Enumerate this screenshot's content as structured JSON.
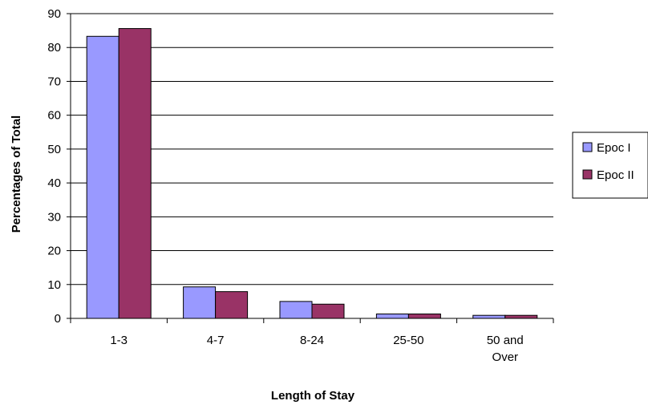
{
  "chart_data": {
    "type": "bar",
    "title": "",
    "xlabel": "Length of Stay",
    "ylabel": "Percentages of Total",
    "categories": [
      [
        "1-3"
      ],
      [
        "4-7"
      ],
      [
        "8-24"
      ],
      [
        "25-50"
      ],
      [
        "50 and",
        "Over"
      ]
    ],
    "series": [
      {
        "name": "Epoc I",
        "values": [
          83.3,
          9.3,
          5.0,
          1.3,
          0.9
        ],
        "color": "#9999ff"
      },
      {
        "name": "Epoc II",
        "values": [
          85.6,
          7.9,
          4.2,
          1.3,
          0.9
        ],
        "color": "#993366"
      }
    ],
    "ylim": [
      0,
      90
    ],
    "yticks": [
      0,
      10,
      20,
      30,
      40,
      50,
      60,
      70,
      80,
      90
    ],
    "grid": true,
    "legend_position": "right"
  }
}
